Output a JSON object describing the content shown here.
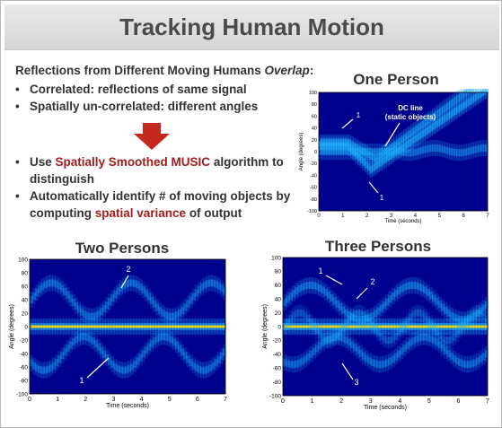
{
  "slide": {
    "title": "Tracking Human Motion",
    "subtitle_main": "Reflections from Different Moving Humans ",
    "subtitle_em": "Overlap",
    "subtitle_tail": ":",
    "bullets_top": [
      "Correlated: reflections of same signal",
      "Spatially un-correlated: different angles"
    ],
    "bullet3": {
      "pre": "Use ",
      "em": "Spatially Smoothed MUSIC",
      "post": " algorithm to distinguish"
    },
    "bullet4": {
      "pre": "Automatically identify # of moving objects by computing ",
      "em": "spatial variance",
      "post": " of output"
    },
    "bullet_char": "•",
    "colors": {
      "accent_red": "#c4291d",
      "heat_bg": "#00008f",
      "heat_mid": "#1fb6ff",
      "heat_hot": "#ffdd00"
    }
  },
  "chart_data": [
    {
      "type": "heatmap",
      "title": "One Person",
      "xlabel": "Time (seconds)",
      "ylabel": "Angle (degrees)",
      "xlim": [
        0,
        7
      ],
      "ylim": [
        -100,
        100
      ],
      "xticks": [
        0,
        1,
        2,
        3,
        4,
        5,
        6,
        7
      ],
      "yticks": [
        100,
        80,
        60,
        40,
        20,
        0,
        -20,
        -40,
        -60,
        -80,
        -100
      ],
      "annotations": [
        "1",
        "1",
        "DC line",
        "(static objects)"
      ]
    },
    {
      "type": "heatmap",
      "title": "Two Persons",
      "xlabel": "Time (seconds)",
      "ylabel": "Angle (degrees)",
      "xlim": [
        0,
        7
      ],
      "ylim": [
        -100,
        100
      ],
      "xticks": [
        0,
        1,
        2,
        3,
        4,
        5,
        6,
        7
      ],
      "yticks": [
        100,
        80,
        60,
        40,
        20,
        0,
        -20,
        -40,
        -60,
        -80,
        -100
      ],
      "annotations": [
        "2",
        "1"
      ]
    },
    {
      "type": "heatmap",
      "title": "Three Persons",
      "xlabel": "Time (seconds)",
      "ylabel": "Angle (degrees)",
      "xlim": [
        0,
        7
      ],
      "ylim": [
        -100,
        100
      ],
      "xticks": [
        0,
        1,
        2,
        3,
        4,
        5,
        6,
        7
      ],
      "yticks": [
        100,
        80,
        60,
        40,
        20,
        0,
        -20,
        -40,
        -60,
        -80,
        -100
      ],
      "annotations": [
        "1",
        "2",
        "3"
      ]
    }
  ]
}
